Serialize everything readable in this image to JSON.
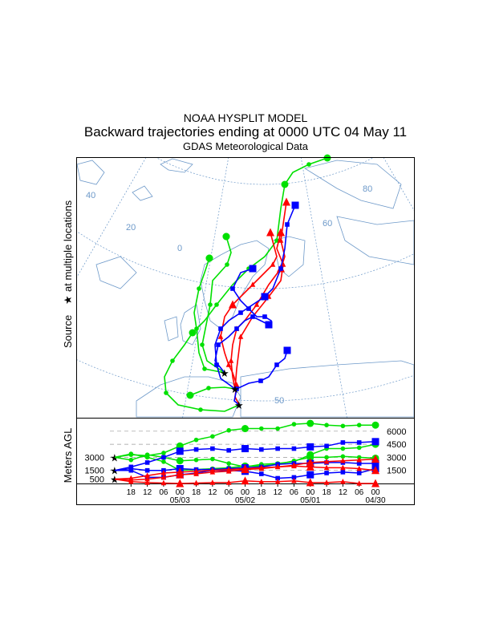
{
  "header": {
    "title": "NOAA HYSPLIT MODEL",
    "subtitle": "Backward trajectories ending at 0000 UTC 04 May 11",
    "data_source": "GDAS Meteorological Data"
  },
  "map": {
    "side_label_left": "Source",
    "side_label_right": "at multiple locations",
    "grid_labels": [
      "40",
      "20",
      "0",
      "80",
      "60",
      "50"
    ]
  },
  "colors": {
    "green": "#00e000",
    "blue": "#0000ff",
    "red": "#ff0000",
    "map": "#6d99c9",
    "grid": "#6d99c9"
  },
  "chart_data": {
    "type": "line",
    "title": "Backward trajectories ending at 0000 UTC 04 May 11",
    "ylabel": "Meters AGL",
    "ylim": [
      0,
      7000
    ],
    "y_ticks": [
      "6000",
      "4500",
      "3000",
      "1500"
    ],
    "start_heights": [
      "3000",
      "1500",
      "500"
    ],
    "x_hours_back": [
      0,
      6,
      12,
      18,
      24,
      30,
      36,
      42,
      48,
      54,
      60,
      66,
      72,
      78,
      84,
      90,
      96
    ],
    "x_tick_labels": [
      "18",
      "12",
      "06",
      "00",
      "18",
      "12",
      "06",
      "00",
      "18",
      "12",
      "06",
      "00",
      "18",
      "12",
      "06",
      "00"
    ],
    "date_labels": [
      "05/03",
      "05/02",
      "05/01",
      "04/30"
    ],
    "series": [
      {
        "name": "3000 m A",
        "color": "green",
        "values": [
          3000,
          3300,
          3200,
          3500,
          4300,
          5000,
          5400,
          6100,
          6300,
          6300,
          6300,
          6800,
          6900,
          6700,
          6600,
          6700,
          6700
        ]
      },
      {
        "name": "3000 m B",
        "color": "green",
        "values": [
          3000,
          2700,
          3300,
          3000,
          2600,
          2700,
          2800,
          2300,
          1900,
          2200,
          2300,
          2500,
          3300,
          4000,
          4000,
          4100,
          4500
        ]
      },
      {
        "name": "3000 m C",
        "color": "green",
        "values": [
          3000,
          3400,
          3000,
          2500,
          1500,
          1600,
          1700,
          1800,
          2000,
          2000,
          2200,
          2600,
          3000,
          3000,
          3100,
          3000,
          2900
        ]
      },
      {
        "name": "1500 m A",
        "color": "blue",
        "values": [
          1500,
          1900,
          2400,
          3000,
          3700,
          3900,
          4000,
          3800,
          4000,
          3900,
          4000,
          4000,
          4200,
          4300,
          4700,
          4700,
          4800
        ]
      },
      {
        "name": "1500 m B",
        "color": "blue",
        "values": [
          1500,
          1500,
          700,
          700,
          1000,
          1200,
          1500,
          1500,
          1400,
          1100,
          600,
          700,
          1000,
          1200,
          1300,
          1200,
          1700
        ]
      },
      {
        "name": "1500 m C",
        "color": "blue",
        "values": [
          1500,
          1700,
          1500,
          1500,
          1700,
          1600,
          1600,
          1700,
          1800,
          1900,
          2200,
          2300,
          2300,
          2400,
          2400,
          2300,
          2300
        ]
      },
      {
        "name": "500 m A",
        "color": "red",
        "values": [
          500,
          600,
          900,
          1200,
          1300,
          1400,
          1500,
          1600,
          1700,
          1800,
          1900,
          2100,
          2400,
          2500,
          2600,
          2700,
          2800
        ]
      },
      {
        "name": "500 m B",
        "color": "red",
        "values": [
          500,
          400,
          500,
          700,
          1000,
          1100,
          1300,
          1400,
          1600,
          1700,
          1900,
          2000,
          1900,
          1800,
          1800,
          1700,
          1500
        ]
      },
      {
        "name": "500 m C",
        "color": "red",
        "values": [
          500,
          200,
          100,
          50,
          0,
          50,
          100,
          100,
          300,
          200,
          200,
          300,
          100,
          100,
          200,
          0,
          0
        ]
      }
    ]
  }
}
